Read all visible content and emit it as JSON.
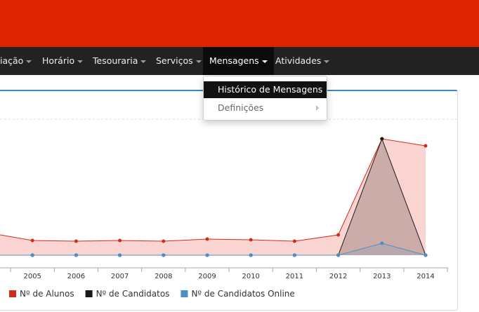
{
  "nav": {
    "items": [
      "iação",
      "Horário",
      "Tesouraria",
      "Serviços",
      "Mensagens",
      "Atividades"
    ],
    "dropdown": [
      "Histórico de Mensagens",
      "Definições"
    ]
  },
  "chart_data": {
    "type": "area",
    "categories": [
      null,
      "2005",
      "2006",
      "2007",
      "2008",
      "2009",
      "2010",
      "2011",
      "2012",
      "2013",
      "2014"
    ],
    "ylim": [
      0,
      194
    ],
    "series": [
      {
        "name": "Nº de Alunos",
        "color": "#d42a1a",
        "values": [
          32,
          21,
          20,
          21,
          20,
          23,
          22,
          20,
          29,
          166,
          156
        ]
      },
      {
        "name": "Nº de Candidatos",
        "color": "#1a1a1a",
        "values": [
          0,
          0,
          0,
          0,
          0,
          0,
          0,
          0,
          0,
          166,
          0
        ]
      },
      {
        "name": "Nº de Candidatos Online",
        "color": "#4a90c8",
        "values": [
          0,
          0,
          0,
          0,
          0,
          0,
          0,
          0,
          0,
          17,
          0
        ]
      }
    ]
  }
}
